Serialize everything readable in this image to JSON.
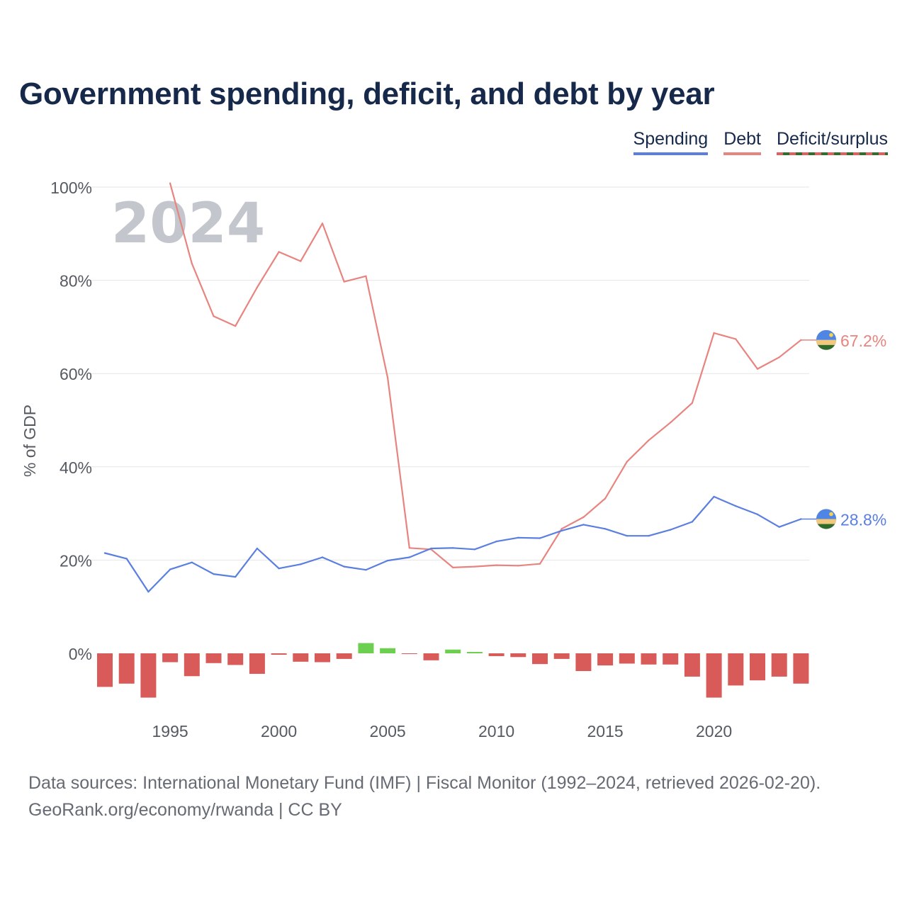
{
  "title": "Government spending, deficit, and debt by year",
  "legend": {
    "spending": "Spending",
    "debt": "Debt",
    "deficit": "Deficit/surplus"
  },
  "colors": {
    "spending": "#5b7fe0",
    "debt": "#e8847f",
    "deficit_negative": "#d95b59",
    "surplus_positive": "#6ccf4f",
    "title": "#17294a",
    "year_watermark": "#c3c6cc"
  },
  "footer": {
    "line1": "Data sources: International Monetary Fund (IMF) | Fiscal Monitor (1992–2024, retrieved 2026-02-20).",
    "line2": "GeoRank.org/economy/rwanda | CC BY"
  },
  "flag_icon": "rwanda-flag-icon",
  "chart_data": {
    "type": "line",
    "title": "Government spending, deficit, and debt by year",
    "year_label": "2024",
    "ylabel": "% of GDP",
    "xlabel": "",
    "ylim": [
      -20,
      100
    ],
    "y_ticks": [
      {
        "value": 0,
        "label": "0%"
      },
      {
        "value": 20,
        "label": "20%"
      },
      {
        "value": 40,
        "label": "40%"
      },
      {
        "value": 60,
        "label": "60%"
      },
      {
        "value": 80,
        "label": "80%"
      },
      {
        "value": 100,
        "label": "100%"
      }
    ],
    "x_ticks": [
      1995,
      2000,
      2005,
      2010,
      2015,
      2020
    ],
    "end_labels": {
      "debt": "67.2%",
      "spending": "28.8%"
    },
    "series": [
      {
        "name": "Spending",
        "type": "line",
        "x": [
          1992,
          1993,
          1994,
          1995,
          1996,
          1997,
          1998,
          1999,
          2000,
          2001,
          2002,
          2003,
          2004,
          2005,
          2006,
          2007,
          2008,
          2009,
          2010,
          2011,
          2012,
          2013,
          2014,
          2015,
          2016,
          2017,
          2018,
          2019,
          2020,
          2021,
          2022,
          2023,
          2024
        ],
        "values": [
          21.5,
          20.3,
          13.2,
          18.0,
          19.5,
          17.0,
          16.4,
          22.5,
          18.2,
          19.1,
          20.6,
          18.6,
          17.9,
          19.9,
          20.6,
          22.5,
          22.6,
          22.3,
          24.0,
          24.8,
          24.7,
          26.3,
          27.6,
          26.7,
          25.2,
          25.2,
          26.5,
          28.2,
          33.6,
          31.6,
          29.8,
          27.1,
          28.8
        ]
      },
      {
        "name": "Debt",
        "type": "line",
        "x": [
          1995,
          1996,
          1997,
          1998,
          1999,
          2000,
          2001,
          2002,
          2003,
          2004,
          2005,
          2006,
          2007,
          2008,
          2009,
          2010,
          2011,
          2012,
          2013,
          2014,
          2015,
          2016,
          2017,
          2018,
          2019,
          2020,
          2021,
          2022,
          2023,
          2024
        ],
        "values": [
          100.8,
          83.6,
          72.3,
          70.2,
          78.5,
          86.1,
          84.1,
          92.2,
          79.7,
          80.9,
          59.1,
          22.6,
          22.3,
          18.4,
          18.6,
          18.9,
          18.8,
          19.2,
          26.7,
          29.2,
          33.2,
          41.1,
          45.7,
          49.5,
          53.7,
          68.7,
          67.4,
          61.0,
          63.5,
          67.2
        ]
      },
      {
        "name": "Deficit/surplus",
        "type": "bar",
        "x": [
          1992,
          1993,
          1994,
          1995,
          1996,
          1997,
          1998,
          1999,
          2000,
          2001,
          2002,
          2003,
          2004,
          2005,
          2006,
          2007,
          2008,
          2009,
          2010,
          2011,
          2012,
          2013,
          2014,
          2015,
          2016,
          2017,
          2018,
          2019,
          2020,
          2021,
          2022,
          2023,
          2024
        ],
        "values": [
          -7.2,
          -6.5,
          -9.5,
          -1.9,
          -4.9,
          -2.1,
          -2.5,
          -4.4,
          -0.3,
          -1.8,
          -1.9,
          -1.2,
          2.2,
          1.1,
          -0.1,
          -1.5,
          0.8,
          0.3,
          -0.6,
          -0.8,
          -2.3,
          -1.2,
          -3.8,
          -2.6,
          -2.2,
          -2.4,
          -2.4,
          -5.0,
          -9.5,
          -6.9,
          -5.8,
          -5.0,
          -6.5
        ]
      }
    ]
  }
}
